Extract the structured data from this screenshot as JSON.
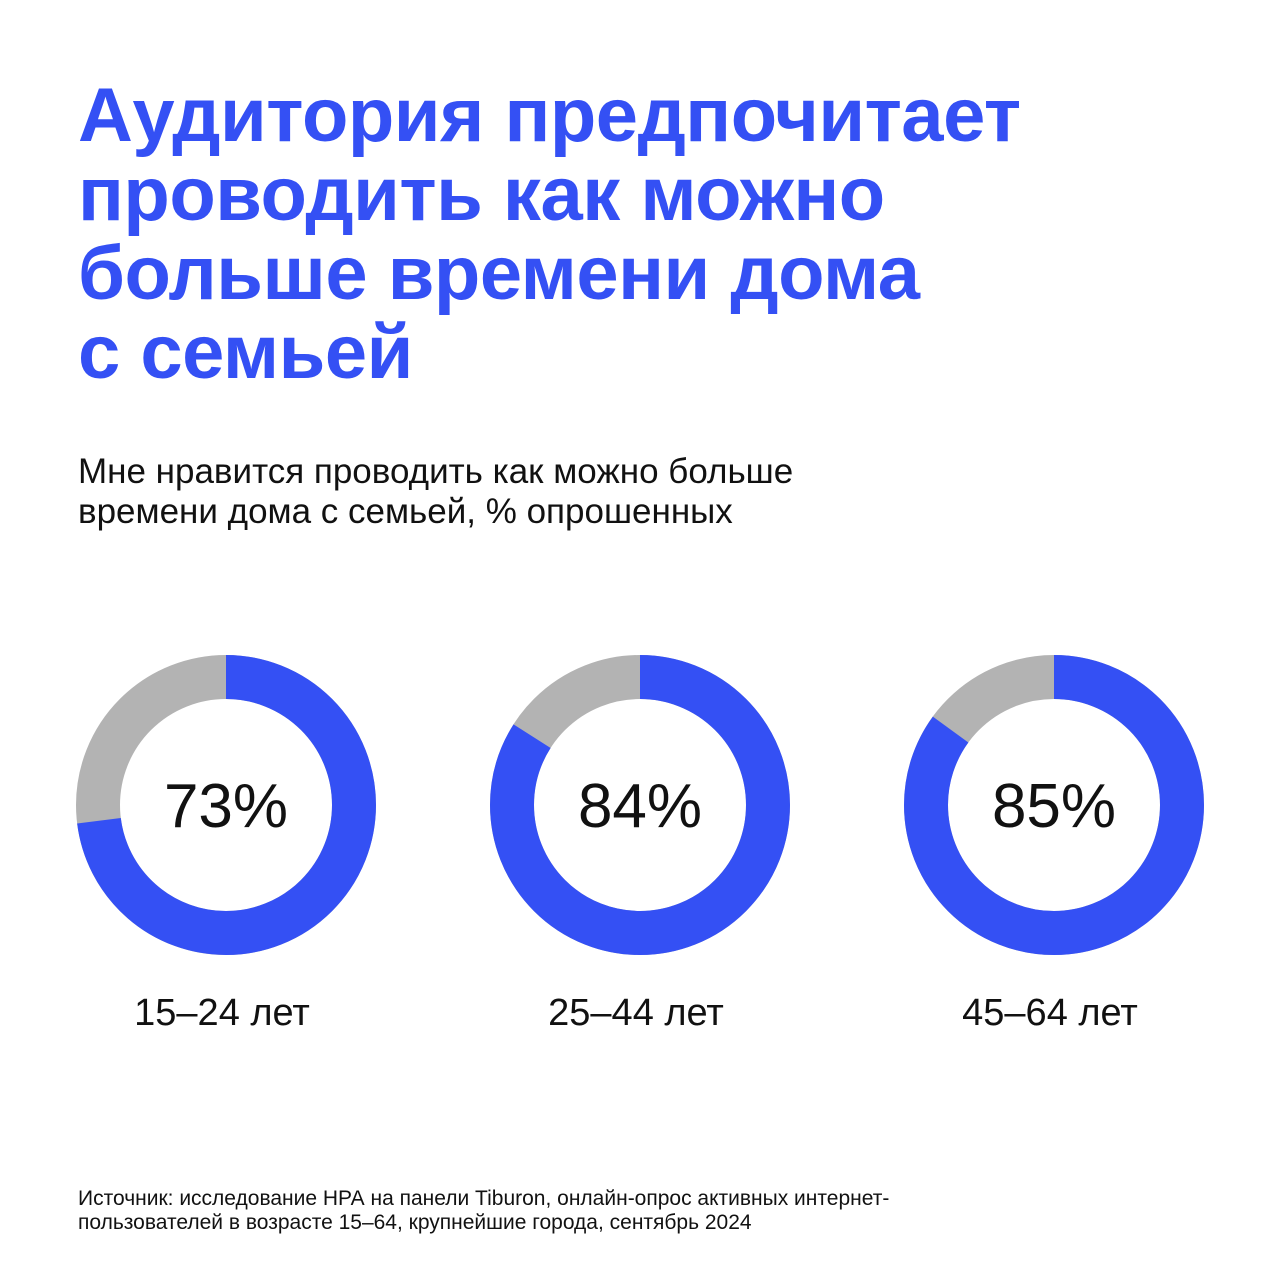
{
  "title_lines": [
    "Аудитория предпочитает",
    "проводить как можно",
    "больше времени дома",
    "с семьей"
  ],
  "subtitle_lines": [
    "Мне нравится проводить как можно больше",
    "времени дома с семьей, % опрошенных"
  ],
  "colors": {
    "accent": "#3450f4",
    "track": "#b3b3b3",
    "text": "#111111",
    "background": "#ffffff"
  },
  "chart_data": {
    "type": "pie",
    "categories": [
      "15–24 лет",
      "25–44 лет",
      "45–64 лет"
    ],
    "values": [
      73,
      84,
      85
    ],
    "value_labels": [
      "73%",
      "84%",
      "85%"
    ],
    "max": 100
  },
  "source_lines": [
    "Источник: исследование НРА на панели Tiburon, онлайн-опрос активных интернет-",
    "пользователей в возрасте 15–64, крупнейшие города, сентябрь 2024"
  ]
}
